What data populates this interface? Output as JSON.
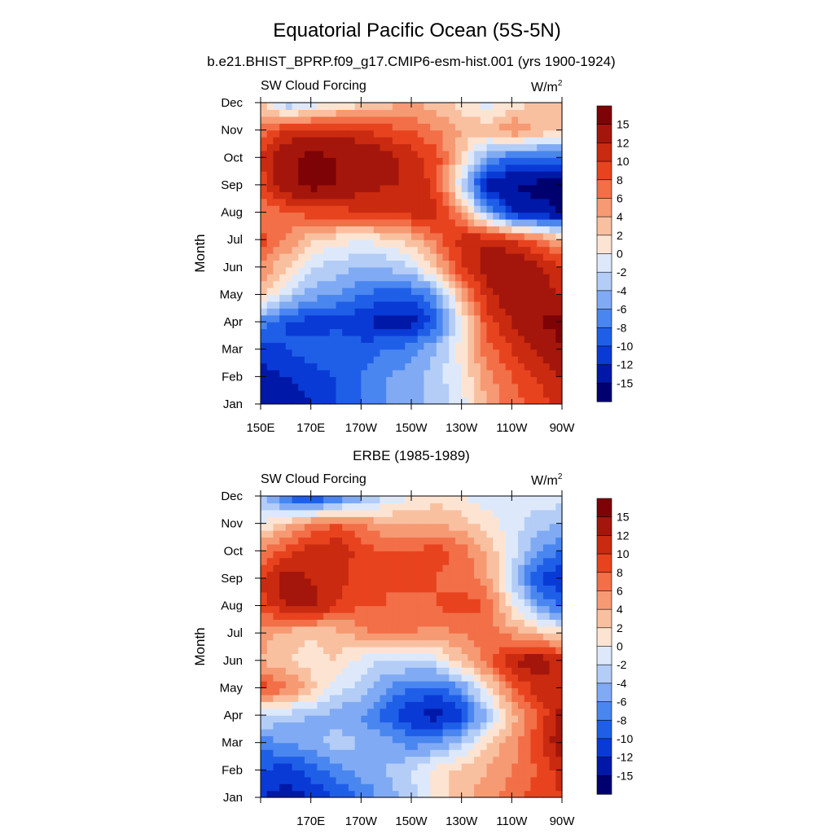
{
  "figure": {
    "title": "Equatorial Pacific Ocean (5S-5N)",
    "units_base": "W/m",
    "units_exp": "2"
  },
  "colors": {
    "levels": [
      "#00006f",
      "#0018a8",
      "#0a3ad6",
      "#1f5fe8",
      "#4a86ef",
      "#80aaf3",
      "#b3cdf7",
      "#dde9fb",
      "#fde4d2",
      "#f9c0a0",
      "#f69a73",
      "#f26f48",
      "#e8431f",
      "#c92a10",
      "#a4160b",
      "#7e0306"
    ]
  },
  "chart_data": [
    {
      "type": "heatmap",
      "title": "b.e21.BHIST_BPRP.f09_g17.CMIP6-esm-hist.001 (yrs 1900-1924)",
      "left_label": "SW Cloud Forcing",
      "units": "W/m2",
      "ylabel": "Month",
      "x_ticks": [
        "150E",
        "170E",
        "170W",
        "150W",
        "130W",
        "110W",
        "90W"
      ],
      "y_ticks": [
        "Jan",
        "Feb",
        "Mar",
        "Apr",
        "May",
        "Jun",
        "Jul",
        "Aug",
        "Sep",
        "Oct",
        "Nov",
        "Dec"
      ],
      "xlim": [
        "150E",
        "90W"
      ],
      "colorbar_labels": [
        "15",
        "12",
        "10",
        "8",
        "6",
        "4",
        "2",
        "0",
        "-2",
        "-4",
        "-6",
        "-8",
        "-10",
        "-12",
        "-15"
      ],
      "grid_columns": [
        "150E",
        "160E",
        "170E",
        "180",
        "170W",
        "160W",
        "150W",
        "140W",
        "130W",
        "120W",
        "110W",
        "100W",
        "90W"
      ],
      "rows": [
        {
          "month": "Jan",
          "values": [
            -13,
            -14,
            -12,
            -10,
            -8,
            -6,
            -5,
            -3,
            -1,
            4,
            7,
            9,
            11
          ]
        },
        {
          "month": "Feb",
          "values": [
            -13,
            -12,
            -11,
            -10,
            -8,
            -6,
            -5,
            -3,
            0,
            5,
            8,
            10,
            12
          ]
        },
        {
          "month": "Mar",
          "values": [
            -11,
            -10,
            -9,
            -8,
            -9,
            -8,
            -7,
            -4,
            1,
            7,
            10,
            12,
            15
          ]
        },
        {
          "month": "Apr",
          "values": [
            -7,
            -10,
            -11,
            -11,
            -12,
            -13,
            -13,
            -9,
            0,
            9,
            12,
            15,
            16
          ]
        },
        {
          "month": "May",
          "values": [
            3,
            -2,
            -5,
            -6,
            -8,
            -9,
            -9,
            -6,
            4,
            11,
            14,
            13,
            12
          ]
        },
        {
          "month": "Jun",
          "values": [
            6,
            2,
            -2,
            -3,
            -4,
            -4,
            -2,
            3,
            10,
            13,
            15,
            13,
            10
          ]
        },
        {
          "month": "Jul",
          "values": [
            9,
            6,
            2,
            1,
            0,
            1,
            3,
            7,
            11,
            12,
            10,
            7,
            4
          ]
        },
        {
          "month": "Aug",
          "values": [
            6,
            8,
            9,
            9,
            10,
            10,
            11,
            11,
            5,
            -5,
            -12,
            -14,
            -15
          ]
        },
        {
          "month": "Sep",
          "values": [
            9,
            14,
            16,
            15,
            13,
            12,
            12,
            9,
            -2,
            -13,
            -15,
            -16,
            -16
          ]
        },
        {
          "month": "Oct",
          "values": [
            10,
            14,
            16,
            15,
            15,
            13,
            11,
            9,
            2,
            -6,
            -8,
            -9,
            -8
          ]
        },
        {
          "month": "Nov",
          "values": [
            7,
            10,
            11,
            11,
            10,
            9,
            8,
            6,
            4,
            3,
            6,
            4,
            2
          ]
        },
        {
          "month": "Dec",
          "values": [
            2,
            -4,
            -2,
            0,
            1,
            3,
            4,
            3,
            1,
            -1,
            1,
            2,
            3
          ]
        }
      ]
    },
    {
      "type": "heatmap",
      "title": "ERBE (1985-1989)",
      "left_label": "SW Cloud Forcing",
      "units": "W/m2",
      "ylabel": "Month",
      "x_ticks": [
        "",
        "170E",
        "170W",
        "150W",
        "130W",
        "110W",
        "90W"
      ],
      "y_ticks": [
        "Jan",
        "Feb",
        "Mar",
        "Apr",
        "May",
        "Jun",
        "Jul",
        "Aug",
        "Sep",
        "Oct",
        "Nov",
        "Dec"
      ],
      "xlim": [
        "150E",
        "90W"
      ],
      "colorbar_labels": [
        "15",
        "12",
        "10",
        "8",
        "6",
        "4",
        "2",
        "0",
        "-2",
        "-4",
        "-6",
        "-8",
        "-10",
        "-12",
        "-15"
      ],
      "grid_columns": [
        "150E",
        "160E",
        "170E",
        "180",
        "170W",
        "160W",
        "150W",
        "140W",
        "130W",
        "120W",
        "110W",
        "100W",
        "90W"
      ],
      "rows": [
        {
          "month": "Jan",
          "values": [
            -12,
            -13,
            -12,
            -10,
            -8,
            -5,
            -3,
            1,
            3,
            5,
            7,
            9,
            10
          ]
        },
        {
          "month": "Feb",
          "values": [
            -10,
            -11,
            -9,
            -7,
            -5,
            -4,
            -2,
            1,
            3,
            4,
            6,
            8,
            11
          ]
        },
        {
          "month": "Mar",
          "values": [
            -7,
            -6,
            -5,
            -3,
            -4,
            -5,
            -7,
            -6,
            -3,
            2,
            5,
            9,
            14
          ]
        },
        {
          "month": "Apr",
          "values": [
            -2,
            -3,
            -4,
            -5,
            -6,
            -9,
            -12,
            -13,
            -11,
            -4,
            3,
            8,
            13
          ]
        },
        {
          "month": "May",
          "values": [
            9,
            7,
            3,
            -1,
            -3,
            -6,
            -8,
            -9,
            -6,
            1,
            7,
            11,
            10
          ]
        },
        {
          "month": "Jun",
          "values": [
            4,
            2,
            1,
            2,
            -1,
            -2,
            -2,
            -1,
            3,
            7,
            12,
            14,
            11
          ]
        },
        {
          "month": "Jul",
          "values": [
            5,
            3,
            2,
            3,
            5,
            7,
            6,
            5,
            6,
            7,
            5,
            3,
            1
          ]
        },
        {
          "month": "Aug",
          "values": [
            9,
            12,
            13,
            10,
            8,
            8,
            7,
            8,
            9,
            8,
            1,
            -5,
            -9
          ]
        },
        {
          "month": "Sep",
          "values": [
            10,
            13,
            12,
            11,
            9,
            8,
            9,
            8,
            7,
            5,
            -3,
            -10,
            -12
          ]
        },
        {
          "month": "Oct",
          "values": [
            6,
            9,
            11,
            12,
            9,
            8,
            8,
            9,
            7,
            4,
            -1,
            -6,
            -8
          ]
        },
        {
          "month": "Nov",
          "values": [
            0,
            3,
            6,
            8,
            6,
            4,
            4,
            4,
            3,
            1,
            -1,
            -3,
            -4
          ]
        },
        {
          "month": "Dec",
          "values": [
            -4,
            -9,
            -12,
            -9,
            -5,
            -2,
            0,
            1,
            0,
            -1,
            -2,
            -1,
            -1
          ]
        }
      ]
    }
  ]
}
